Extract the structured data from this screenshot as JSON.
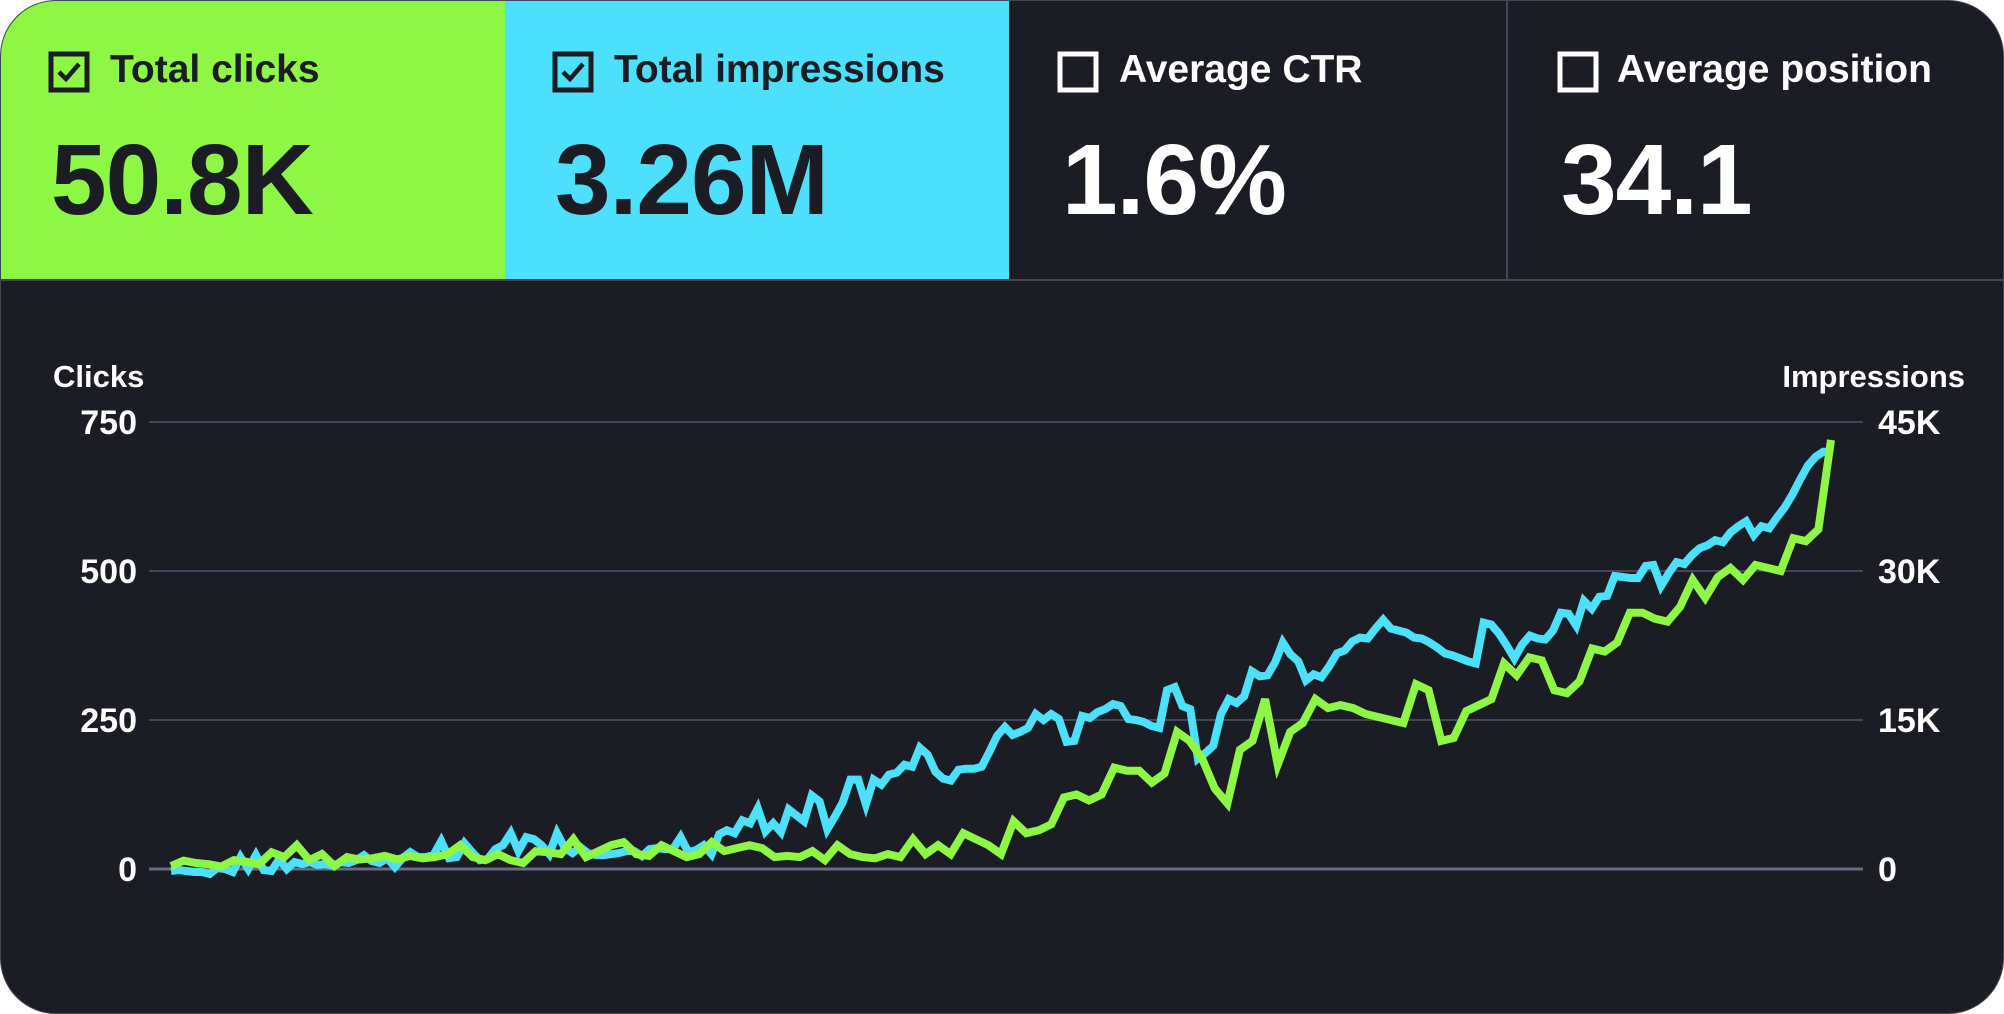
{
  "metrics": [
    {
      "label": "Total clicks",
      "value": "50.8K",
      "checked": true,
      "color": "#8ef644"
    },
    {
      "label": "Total impressions",
      "value": "3.26M",
      "checked": true,
      "color": "#4ce0fc"
    },
    {
      "label": "Average CTR",
      "value": "1.6%",
      "checked": false
    },
    {
      "label": "Average position",
      "value": "34.1",
      "checked": false
    }
  ],
  "colors": {
    "background": "#1c1d24",
    "border": "#45455a",
    "clicks": "#8ef644",
    "impressions": "#4ce0fc"
  },
  "chart_data": {
    "type": "line",
    "ylabel_left": "Clicks",
    "ylabel_right": "Impressions",
    "y_ticks_left": [
      "0",
      "250",
      "500",
      "750"
    ],
    "y_ticks_right": [
      "0",
      "15K",
      "30K",
      "45K"
    ],
    "ylim_left": [
      0,
      750
    ],
    "ylim_right": [
      0,
      45000
    ],
    "grid": true,
    "legend": "none",
    "series": [
      {
        "name": "Total clicks",
        "axis": "left",
        "color": "#8ef644",
        "values": [
          5,
          14,
          10,
          8,
          4,
          15,
          12,
          8,
          28,
          20,
          40,
          15,
          25,
          5,
          20,
          16,
          18,
          22,
          16,
          22,
          18,
          20,
          25,
          40,
          20,
          15,
          25,
          15,
          10,
          30,
          28,
          25,
          50,
          20,
          30,
          40,
          45,
          25,
          22,
          40,
          30,
          20,
          25,
          45,
          30,
          35,
          40,
          35,
          20,
          22,
          20,
          30,
          15,
          40,
          25,
          20,
          18,
          25,
          20,
          50,
          25,
          40,
          25,
          60,
          50,
          40,
          25,
          80,
          60,
          65,
          75,
          120,
          125,
          115,
          125,
          170,
          165,
          165,
          145,
          160,
          230,
          215,
          185,
          135,
          110,
          200,
          215,
          285,
          175,
          230,
          245,
          285,
          270,
          275,
          270,
          260,
          255,
          250,
          245,
          310,
          300,
          215,
          220,
          265,
          275,
          285,
          345,
          325,
          355,
          350,
          300,
          295,
          315,
          370,
          365,
          380,
          430,
          430,
          420,
          415,
          440,
          485,
          455,
          490,
          505,
          485,
          510,
          505,
          500,
          555,
          550,
          570,
          720
        ]
      },
      {
        "name": "Total impressions",
        "axis": "right",
        "color": "#4ce0fc",
        "values": [
          -200,
          -100,
          -200,
          -300,
          -300,
          -500,
          100,
          0,
          -300,
          1200,
          0,
          1400,
          -100,
          -200,
          1000,
          0,
          700,
          500,
          700,
          400,
          500,
          300,
          700,
          600,
          900,
          1400,
          800,
          600,
          1100,
          200,
          1100,
          1700,
          1200,
          1200,
          1400,
          2800,
          1100,
          1200,
          2600,
          1700,
          900,
          1000,
          2000,
          2400,
          3600,
          1800,
          3200,
          3000,
          2400,
          1500,
          3600,
          2100,
          1600,
          2200,
          1600,
          1400,
          1400,
          1500,
          1600,
          1800,
          1800,
          1300,
          2000,
          2100,
          2000,
          2000,
          3200,
          1700,
          1900,
          2400,
          1500,
          3500,
          3900,
          3600,
          4900,
          4600,
          6100,
          3800,
          4600,
          3700,
          6000,
          5400,
          4800,
          7400,
          6800,
          4000,
          5300,
          6700,
          9000,
          9000,
          6500,
          9000,
          8500,
          9500,
          9700,
          10500,
          10300,
          12200,
          11500,
          9800,
          9100,
          8900,
          10000,
          10100,
          10100,
          10300,
          11800,
          13400,
          14300,
          13500,
          13800,
          14200,
          15600,
          15000,
          15600,
          15100,
          12800,
          12900,
          15400,
          15200,
          15800,
          16100,
          16600,
          16400,
          15100,
          15000,
          14800,
          14400,
          14200,
          18000,
          18300,
          16400,
          16100,
          11100,
          11700,
          12400,
          15600,
          17100,
          16700,
          17400,
          19900,
          19400,
          19500,
          20800,
          22800,
          21600,
          20900,
          19000,
          19600,
          19300,
          20400,
          21700,
          22000,
          22900,
          23300,
          23200,
          24200,
          25100,
          24200,
          24000,
          23800,
          23300,
          23200,
          22800,
          22300,
          21700,
          21500,
          21200,
          20900,
          20700,
          24800,
          24600,
          23700,
          22500,
          21200,
          22600,
          23500,
          23200,
          23100,
          24000,
          25800,
          25700,
          24500,
          27000,
          26200,
          27400,
          27500,
          29500,
          29400,
          29300,
          29300,
          30500,
          30600,
          28500,
          29800,
          30900,
          30700,
          31600,
          32300,
          32600,
          33100,
          32900,
          33900,
          34500,
          35000,
          33600,
          34500,
          34300,
          35400,
          36400,
          37700,
          39200,
          40600,
          41500,
          42000,
          42000
        ]
      }
    ]
  }
}
